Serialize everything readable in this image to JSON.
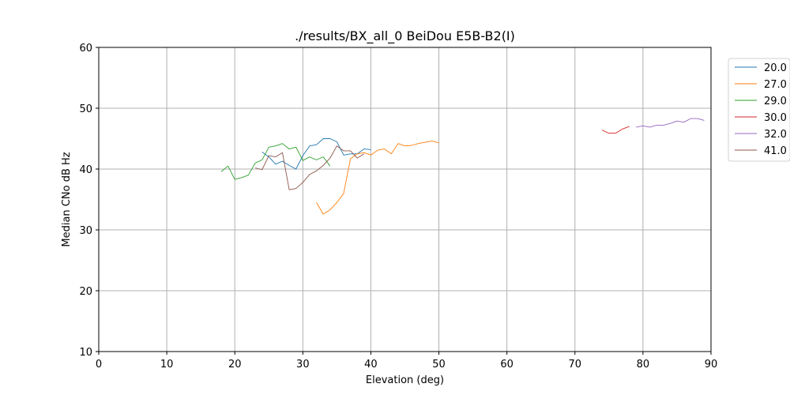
{
  "chart_data": {
    "type": "line",
    "title": "./results/BX_all_0 BeiDou E5B-B2(I)",
    "xlabel": "Elevation (deg)",
    "ylabel": "Median CNo dB Hz",
    "xlim": [
      0,
      90
    ],
    "ylim": [
      10,
      60
    ],
    "xticks": [
      0,
      10,
      20,
      30,
      40,
      50,
      60,
      70,
      80,
      90
    ],
    "yticks": [
      10,
      20,
      30,
      40,
      50,
      60
    ],
    "grid": true,
    "legend_placement": "outside-right",
    "series": [
      {
        "name": "20.0",
        "color": "#1f77b4",
        "x": [
          24,
          25,
          26,
          27,
          28,
          29,
          30,
          31,
          32,
          33,
          34,
          35,
          36,
          37,
          38,
          39,
          40
        ],
        "y": [
          42.8,
          42.0,
          40.8,
          41.3,
          40.6,
          40.0,
          42.2,
          43.8,
          44.0,
          45.0,
          45.0,
          44.5,
          42.3,
          42.5,
          42.5,
          43.3,
          43.2
        ]
      },
      {
        "name": "27.0",
        "color": "#ff7f0e",
        "x": [
          32,
          33,
          34,
          35,
          36,
          37,
          38,
          39,
          40,
          41,
          42,
          43,
          44,
          45,
          46,
          47,
          48,
          49,
          50
        ],
        "y": [
          34.5,
          32.6,
          33.3,
          34.5,
          36.0,
          41.7,
          42.5,
          42.7,
          42.3,
          43.1,
          43.3,
          42.5,
          44.2,
          43.8,
          43.9,
          44.2,
          44.4,
          44.6,
          44.3
        ]
      },
      {
        "name": "29.0",
        "color": "#2ca02c",
        "x": [
          18,
          19,
          20,
          21,
          22,
          23,
          24,
          25,
          26,
          27,
          28,
          29,
          30,
          31,
          32,
          33,
          34
        ],
        "y": [
          39.6,
          40.5,
          38.3,
          38.6,
          39.0,
          41.0,
          41.5,
          43.6,
          43.8,
          44.2,
          43.3,
          43.6,
          41.4,
          42.0,
          41.5,
          42.0,
          40.5
        ]
      },
      {
        "name": "30.0",
        "color": "#d62728",
        "x": [
          74,
          75,
          76,
          77,
          78
        ],
        "y": [
          46.4,
          45.9,
          45.9,
          46.6,
          47.0
        ]
      },
      {
        "name": "32.0",
        "color": "#9467bd",
        "x": [
          79,
          80,
          81,
          82,
          83,
          84,
          85,
          86,
          87,
          88,
          89
        ],
        "y": [
          46.9,
          47.1,
          46.9,
          47.2,
          47.2,
          47.5,
          47.9,
          47.7,
          48.3,
          48.3,
          48.0
        ]
      },
      {
        "name": "41.0",
        "color": "#8c564b",
        "x": [
          23,
          24,
          25,
          26,
          27,
          28,
          29,
          30,
          31,
          32,
          33,
          34,
          35,
          36,
          37,
          38,
          39
        ],
        "y": [
          40.2,
          39.9,
          42.2,
          42.0,
          42.7,
          36.6,
          36.8,
          37.8,
          39.1,
          39.7,
          40.6,
          41.8,
          43.8,
          43.0,
          43.0,
          41.8,
          42.5
        ]
      }
    ]
  }
}
